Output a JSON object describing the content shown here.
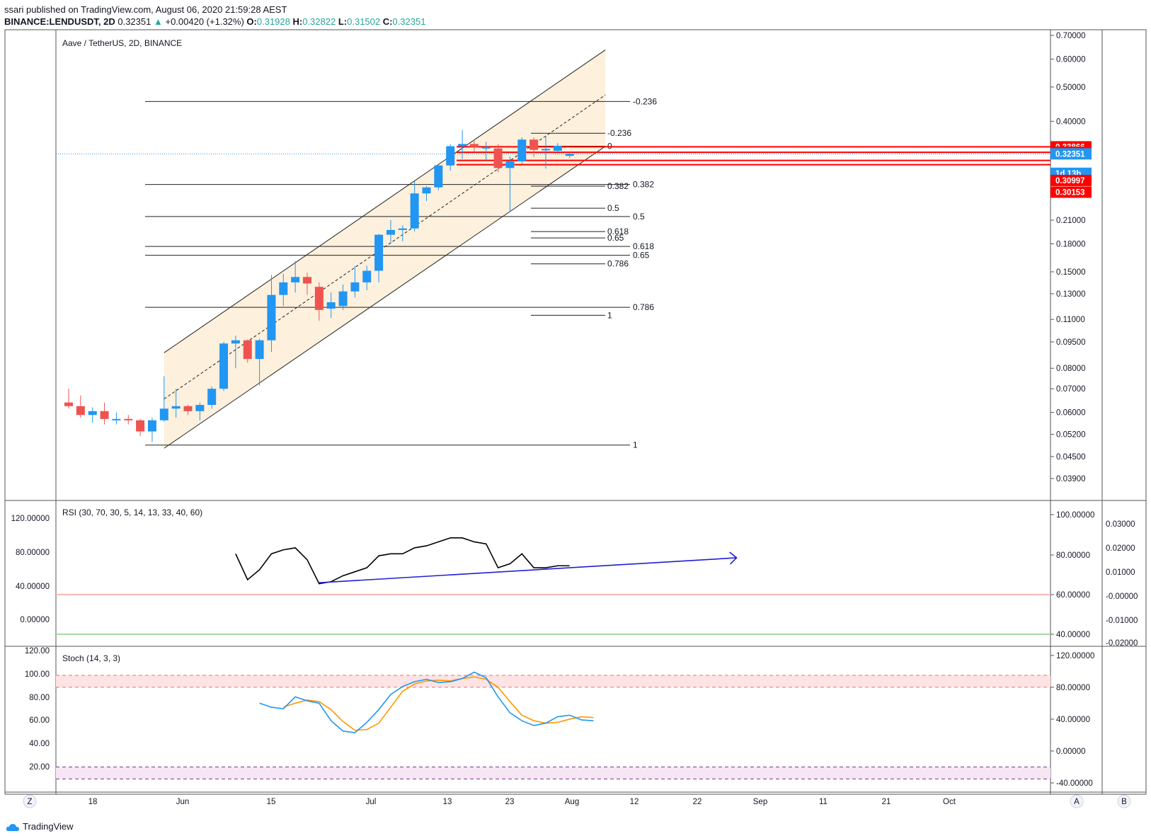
{
  "header": {
    "published": "ssari published on TradingView.com, August 06, 2020 21:59:28 AEST",
    "symbol": "BINANCE:LENDUSDT, 2D",
    "last": "0.32351",
    "change": "+0.00420 (+1.32%)",
    "open_label": "O:",
    "open": "0.31928",
    "high_label": "H:",
    "high": "0.32822",
    "low_label": "L:",
    "low": "0.31502",
    "close_label": "C:",
    "close": "0.32351"
  },
  "colors": {
    "up": "#2196f3",
    "down": "#ef5350",
    "channel": "#fdf0dc",
    "marker_red": "#ff0000",
    "marker_blue": "#2196f3",
    "rsi_trend": "#1f1fd6",
    "stoch_k": "#2196f3",
    "stoch_d": "#ff9800"
  },
  "chart_data": [
    {
      "type": "candlestick",
      "title": "Aave / TetherUS, 2D, BINANCE",
      "y_scale": "log",
      "ylim": [
        0.039,
        0.7
      ],
      "y_ticks": [
        "0.70000",
        "0.60000",
        "0.50000",
        "0.40000",
        "0.21000",
        "0.18000",
        "0.15000",
        "0.13000",
        "0.11000",
        "0.09500",
        "0.08000",
        "0.07000",
        "0.06000",
        "0.05200",
        "0.04500",
        "0.03900"
      ],
      "x_ticks": [
        "18",
        "Jun",
        "15",
        "Jul",
        "13",
        "23",
        "Aug",
        "12",
        "22",
        "Sep",
        "11",
        "21",
        "Oct"
      ],
      "candles": [
        {
          "o": 0.064,
          "h": 0.07,
          "l": 0.0615,
          "c": 0.0625
        },
        {
          "o": 0.0625,
          "h": 0.067,
          "l": 0.058,
          "c": 0.059
        },
        {
          "o": 0.059,
          "h": 0.062,
          "l": 0.056,
          "c": 0.0605
        },
        {
          "o": 0.0605,
          "h": 0.064,
          "l": 0.0555,
          "c": 0.0575
        },
        {
          "o": 0.0575,
          "h": 0.06,
          "l": 0.0555,
          "c": 0.0575
        },
        {
          "o": 0.0575,
          "h": 0.059,
          "l": 0.0555,
          "c": 0.057
        },
        {
          "o": 0.057,
          "h": 0.0575,
          "l": 0.0515,
          "c": 0.053
        },
        {
          "o": 0.053,
          "h": 0.058,
          "l": 0.0495,
          "c": 0.057
        },
        {
          "o": 0.057,
          "h": 0.076,
          "l": 0.0565,
          "c": 0.0615
        },
        {
          "o": 0.0615,
          "h": 0.07,
          "l": 0.058,
          "c": 0.0625
        },
        {
          "o": 0.0625,
          "h": 0.063,
          "l": 0.059,
          "c": 0.0605
        },
        {
          "o": 0.0605,
          "h": 0.064,
          "l": 0.057,
          "c": 0.063
        },
        {
          "o": 0.063,
          "h": 0.071,
          "l": 0.0615,
          "c": 0.07
        },
        {
          "o": 0.07,
          "h": 0.095,
          "l": 0.069,
          "c": 0.094
        },
        {
          "o": 0.094,
          "h": 0.099,
          "l": 0.08,
          "c": 0.096
        },
        {
          "o": 0.096,
          "h": 0.0965,
          "l": 0.083,
          "c": 0.085
        },
        {
          "o": 0.085,
          "h": 0.097,
          "l": 0.0715,
          "c": 0.096
        },
        {
          "o": 0.096,
          "h": 0.147,
          "l": 0.089,
          "c": 0.129
        },
        {
          "o": 0.129,
          "h": 0.148,
          "l": 0.12,
          "c": 0.14
        },
        {
          "o": 0.14,
          "h": 0.161,
          "l": 0.131,
          "c": 0.145
        },
        {
          "o": 0.145,
          "h": 0.149,
          "l": 0.129,
          "c": 0.139
        },
        {
          "o": 0.136,
          "h": 0.14,
          "l": 0.109,
          "c": 0.117
        },
        {
          "o": 0.118,
          "h": 0.131,
          "l": 0.111,
          "c": 0.123
        },
        {
          "o": 0.12,
          "h": 0.138,
          "l": 0.117,
          "c": 0.132
        },
        {
          "o": 0.132,
          "h": 0.156,
          "l": 0.127,
          "c": 0.14
        },
        {
          "o": 0.14,
          "h": 0.156,
          "l": 0.133,
          "c": 0.151
        },
        {
          "o": 0.151,
          "h": 0.192,
          "l": 0.14,
          "c": 0.191
        },
        {
          "o": 0.191,
          "h": 0.21,
          "l": 0.18,
          "c": 0.197
        },
        {
          "o": 0.197,
          "h": 0.203,
          "l": 0.183,
          "c": 0.199
        },
        {
          "o": 0.199,
          "h": 0.27,
          "l": 0.195,
          "c": 0.25
        },
        {
          "o": 0.25,
          "h": 0.262,
          "l": 0.238,
          "c": 0.26
        },
        {
          "o": 0.26,
          "h": 0.3,
          "l": 0.255,
          "c": 0.3
        },
        {
          "o": 0.3,
          "h": 0.345,
          "l": 0.29,
          "c": 0.34
        },
        {
          "o": 0.34,
          "h": 0.378,
          "l": 0.313,
          "c": 0.345
        },
        {
          "o": 0.345,
          "h": 0.352,
          "l": 0.328,
          "c": 0.338
        },
        {
          "o": 0.338,
          "h": 0.35,
          "l": 0.31,
          "c": 0.338
        },
        {
          "o": 0.335,
          "h": 0.345,
          "l": 0.287,
          "c": 0.295
        },
        {
          "o": 0.295,
          "h": 0.318,
          "l": 0.222,
          "c": 0.308
        },
        {
          "o": 0.308,
          "h": 0.36,
          "l": 0.303,
          "c": 0.355
        },
        {
          "o": 0.355,
          "h": 0.36,
          "l": 0.317,
          "c": 0.332
        },
        {
          "o": 0.332,
          "h": 0.363,
          "l": 0.294,
          "c": 0.334
        },
        {
          "o": 0.33,
          "h": 0.347,
          "l": 0.329,
          "c": 0.341
        },
        {
          "o": 0.3193,
          "h": 0.3282,
          "l": 0.315,
          "c": 0.3235
        }
      ],
      "channel": {
        "upper": [
          [
            8,
            0.0885
          ],
          [
            45,
            0.637
          ]
        ],
        "mid": [
          [
            8,
            0.0655
          ],
          [
            45,
            0.475
          ]
        ],
        "lower": [
          [
            8,
            0.0475
          ],
          [
            45,
            0.34
          ]
        ]
      },
      "fib_big": [
        {
          "label": "-0.236",
          "price": 0.455
        },
        {
          "label": "0.382",
          "price": 0.265
        },
        {
          "label": "0.5",
          "price": 0.215
        },
        {
          "label": "0.618",
          "price": 0.177
        },
        {
          "label": "0.65",
          "price": 0.167
        },
        {
          "label": "0.786",
          "price": 0.119
        },
        {
          "label": "1",
          "price": 0.0485
        }
      ],
      "fib_small": [
        {
          "label": "-0.236",
          "price": 0.37
        },
        {
          "label": "0",
          "price": 0.34
        },
        {
          "label": "0.382",
          "price": 0.262
        },
        {
          "label": "0.5",
          "price": 0.227
        },
        {
          "label": "0.618",
          "price": 0.195
        },
        {
          "label": "0.65",
          "price": 0.187
        },
        {
          "label": "0.786",
          "price": 0.158
        },
        {
          "label": "1",
          "price": 0.113
        }
      ],
      "hlines": [
        0.33866,
        0.32688,
        0.30997,
        0.30153
      ],
      "price_labels": [
        {
          "text": "0.33866",
          "price": 0.33866,
          "color": "#ff0000"
        },
        {
          "text": "0.32688",
          "price": 0.32688,
          "color": "#ff0000"
        },
        {
          "text": "0.32351",
          "price": 0.32351,
          "color": "#2196f3"
        },
        {
          "text": "1d 13h",
          "price": 0.285,
          "color": "#2196f3"
        },
        {
          "text": "0.30997",
          "price": 0.272,
          "color": "#ff0000"
        },
        {
          "text": "0.30153",
          "price": 0.252,
          "color": "#ff0000"
        }
      ]
    },
    {
      "type": "line",
      "title": "RSI (30, 70, 30, 5, 14, 13, 33, 40, 60)",
      "left_ticks": [
        "120.00000",
        "80.00000",
        "40.00000",
        "0.00000"
      ],
      "right_ticks": [
        "100.00000",
        "80.00000",
        "60.00000",
        "40.00000"
      ],
      "far_right_ticks": [
        "0.03000",
        "0.02000",
        "0.01000",
        "-0.00000",
        "-0.01000",
        "-0.02000"
      ],
      "ylim": [
        33,
        103
      ],
      "levels": [
        60,
        40
      ],
      "series": [
        {
          "values": [
            {
              "i": 14,
              "v": 78
            },
            {
              "i": 15,
              "v": 65
            },
            {
              "i": 16,
              "v": 70
            },
            {
              "i": 17,
              "v": 78
            },
            {
              "i": 18,
              "v": 80
            },
            {
              "i": 19,
              "v": 81
            },
            {
              "i": 20,
              "v": 75
            },
            {
              "i": 21,
              "v": 63
            },
            {
              "i": 22,
              "v": 64
            },
            {
              "i": 23,
              "v": 67
            },
            {
              "i": 24,
              "v": 69
            },
            {
              "i": 25,
              "v": 71
            },
            {
              "i": 26,
              "v": 77
            },
            {
              "i": 27,
              "v": 78
            },
            {
              "i": 28,
              "v": 78
            },
            {
              "i": 29,
              "v": 81
            },
            {
              "i": 30,
              "v": 82
            },
            {
              "i": 31,
              "v": 84
            },
            {
              "i": 32,
              "v": 86
            },
            {
              "i": 33,
              "v": 86
            },
            {
              "i": 34,
              "v": 84
            },
            {
              "i": 35,
              "v": 83
            },
            {
              "i": 36,
              "v": 71
            },
            {
              "i": 37,
              "v": 73
            },
            {
              "i": 38,
              "v": 78
            },
            {
              "i": 39,
              "v": 71
            },
            {
              "i": 40,
              "v": 71
            },
            {
              "i": 41,
              "v": 72
            },
            {
              "i": 42,
              "v": 72
            }
          ]
        }
      ],
      "trendline": [
        [
          21,
          63.5
        ],
        [
          56,
          76
        ]
      ]
    },
    {
      "type": "line",
      "title": "Stoch (14, 3, 3)",
      "left_ticks": [
        "120.00",
        "100.00",
        "80.00",
        "60.00",
        "40.00",
        "20.00"
      ],
      "right_ticks": [
        "120.00000",
        "80.00000",
        "40.00000",
        "0.00000",
        "-40.00000"
      ],
      "ylim": [
        -48,
        127
      ],
      "bands": [
        [
          80,
          95
        ],
        [
          -20,
          -35
        ]
      ],
      "series": [
        {
          "values": [
            {
              "i": 16,
              "v": 60
            },
            {
              "i": 17,
              "v": 55
            },
            {
              "i": 18,
              "v": 53
            },
            {
              "i": 19,
              "v": 68
            },
            {
              "i": 20,
              "v": 63
            },
            {
              "i": 21,
              "v": 60
            },
            {
              "i": 22,
              "v": 38
            },
            {
              "i": 23,
              "v": 25
            },
            {
              "i": 24,
              "v": 23
            },
            {
              "i": 25,
              "v": 36
            },
            {
              "i": 26,
              "v": 52
            },
            {
              "i": 27,
              "v": 71
            },
            {
              "i": 28,
              "v": 81
            },
            {
              "i": 29,
              "v": 87
            },
            {
              "i": 30,
              "v": 90
            },
            {
              "i": 31,
              "v": 86
            },
            {
              "i": 32,
              "v": 87
            },
            {
              "i": 33,
              "v": 91
            },
            {
              "i": 34,
              "v": 99
            },
            {
              "i": 35,
              "v": 92
            },
            {
              "i": 36,
              "v": 68
            },
            {
              "i": 37,
              "v": 48
            },
            {
              "i": 38,
              "v": 38
            },
            {
              "i": 39,
              "v": 32
            },
            {
              "i": 40,
              "v": 35
            },
            {
              "i": 41,
              "v": 43
            },
            {
              "i": 42,
              "v": 45
            },
            {
              "i": 43,
              "v": 39
            },
            {
              "i": 44,
              "v": 38
            }
          ]
        },
        {
          "values": [
            {
              "i": 18,
              "v": 55
            },
            {
              "i": 19,
              "v": 60
            },
            {
              "i": 20,
              "v": 64
            },
            {
              "i": 21,
              "v": 62
            },
            {
              "i": 22,
              "v": 52
            },
            {
              "i": 23,
              "v": 37
            },
            {
              "i": 24,
              "v": 26
            },
            {
              "i": 25,
              "v": 27
            },
            {
              "i": 26,
              "v": 35
            },
            {
              "i": 27,
              "v": 55
            },
            {
              "i": 28,
              "v": 75
            },
            {
              "i": 29,
              "v": 84
            },
            {
              "i": 30,
              "v": 88
            },
            {
              "i": 31,
              "v": 89
            },
            {
              "i": 32,
              "v": 88
            },
            {
              "i": 33,
              "v": 91
            },
            {
              "i": 34,
              "v": 93
            },
            {
              "i": 35,
              "v": 90
            },
            {
              "i": 36,
              "v": 80
            },
            {
              "i": 37,
              "v": 62
            },
            {
              "i": 38,
              "v": 45
            },
            {
              "i": 39,
              "v": 38
            },
            {
              "i": 40,
              "v": 35
            },
            {
              "i": 41,
              "v": 36
            },
            {
              "i": 42,
              "v": 40
            },
            {
              "i": 43,
              "v": 43
            },
            {
              "i": 44,
              "v": 42
            }
          ]
        }
      ]
    }
  ],
  "toolbar": {
    "left_btn": "Z",
    "right_btn1": "A",
    "right_btn2": "B"
  },
  "footer": {
    "brand": "TradingView"
  }
}
